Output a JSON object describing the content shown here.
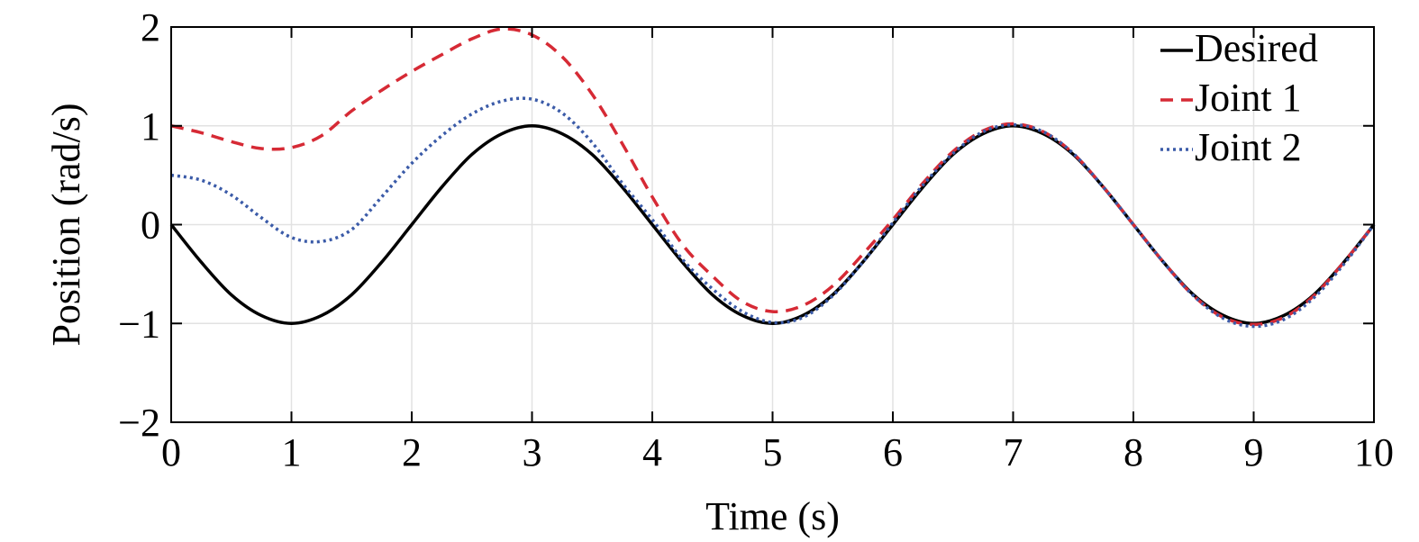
{
  "chart_data": {
    "type": "line",
    "title": "",
    "xlabel": "Time (s)",
    "ylabel": "Position (rad/s)",
    "xlim": [
      0,
      10
    ],
    "ylim": [
      -2,
      2
    ],
    "xticks": [
      0,
      1,
      2,
      3,
      4,
      5,
      6,
      7,
      8,
      9,
      10
    ],
    "yticks": [
      -2,
      -1,
      0,
      1,
      2
    ],
    "xtick_labels": [
      "0",
      "1",
      "2",
      "3",
      "4",
      "5",
      "6",
      "7",
      "8",
      "9",
      "10"
    ],
    "ytick_labels": [
      "−2",
      "−1",
      "0",
      "1",
      "2"
    ],
    "grid": true,
    "legend_position": "top-right",
    "x": [
      0,
      0.25,
      0.5,
      0.75,
      1,
      1.25,
      1.5,
      1.75,
      2,
      2.25,
      2.5,
      2.75,
      3,
      3.25,
      3.5,
      3.75,
      4,
      4.25,
      4.5,
      4.75,
      5,
      5.25,
      5.5,
      5.75,
      6,
      6.25,
      6.5,
      6.75,
      7,
      7.25,
      7.5,
      7.75,
      8,
      8.25,
      8.5,
      8.75,
      9,
      9.25,
      9.5,
      9.75,
      10
    ],
    "series": [
      {
        "name": "Desired",
        "color": "#000000",
        "dash": "solid",
        "values": [
          0,
          -0.38,
          -0.71,
          -0.92,
          -1,
          -0.92,
          -0.71,
          -0.38,
          0,
          0.38,
          0.71,
          0.92,
          1,
          0.92,
          0.71,
          0.38,
          0,
          -0.38,
          -0.71,
          -0.92,
          -1,
          -0.92,
          -0.71,
          -0.38,
          0,
          0.38,
          0.71,
          0.92,
          1,
          0.92,
          0.71,
          0.38,
          0,
          -0.38,
          -0.71,
          -0.92,
          -1,
          -0.92,
          -0.71,
          -0.38,
          0
        ]
      },
      {
        "name": "Joint 1",
        "color": "#d62a35",
        "dash": "dashed",
        "values": [
          1,
          0.93,
          0.84,
          0.77,
          0.78,
          0.9,
          1.15,
          1.36,
          1.55,
          1.72,
          1.88,
          1.98,
          1.92,
          1.7,
          1.32,
          0.82,
          0.28,
          -0.2,
          -0.52,
          -0.78,
          -0.88,
          -0.82,
          -0.62,
          -0.3,
          0.05,
          0.42,
          0.74,
          0.95,
          1.02,
          0.94,
          0.72,
          0.38,
          0,
          -0.38,
          -0.72,
          -0.94,
          -1.01,
          -0.94,
          -0.72,
          -0.38,
          0
        ]
      },
      {
        "name": "Joint 2",
        "color": "#3b5ba8",
        "dash": "dotted",
        "values": [
          0.5,
          0.45,
          0.3,
          0.07,
          -0.13,
          -0.17,
          -0.05,
          0.28,
          0.62,
          0.9,
          1.12,
          1.25,
          1.27,
          1.13,
          0.83,
          0.42,
          0.05,
          -0.35,
          -0.65,
          -0.88,
          -0.99,
          -0.94,
          -0.72,
          -0.38,
          0.02,
          0.4,
          0.72,
          0.94,
          1.01,
          0.94,
          0.72,
          0.38,
          0,
          -0.38,
          -0.72,
          -0.95,
          -1.03,
          -0.96,
          -0.74,
          -0.4,
          0
        ]
      }
    ]
  }
}
